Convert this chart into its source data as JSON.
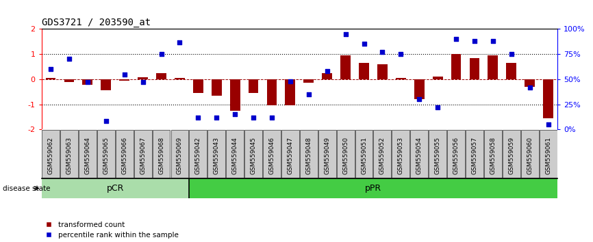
{
  "title": "GDS3721 / 203590_at",
  "samples": [
    "GSM559062",
    "GSM559063",
    "GSM559064",
    "GSM559065",
    "GSM559066",
    "GSM559067",
    "GSM559068",
    "GSM559069",
    "GSM559042",
    "GSM559043",
    "GSM559044",
    "GSM559045",
    "GSM559046",
    "GSM559047",
    "GSM559048",
    "GSM559049",
    "GSM559050",
    "GSM559051",
    "GSM559052",
    "GSM559053",
    "GSM559054",
    "GSM559055",
    "GSM559056",
    "GSM559057",
    "GSM559058",
    "GSM559059",
    "GSM559060",
    "GSM559061"
  ],
  "red_bars": [
    0.05,
    -0.1,
    -0.22,
    -0.45,
    -0.07,
    0.07,
    0.25,
    0.05,
    -0.55,
    -0.65,
    -1.25,
    -0.55,
    -1.05,
    -1.05,
    -0.15,
    0.25,
    0.95,
    0.65,
    0.6,
    0.05,
    -0.8,
    0.1,
    1.0,
    0.85,
    0.95,
    0.65,
    -0.3,
    -1.55
  ],
  "blue_dots": [
    60,
    70,
    47,
    8,
    55,
    47,
    75,
    87,
    12,
    12,
    15,
    12,
    12,
    48,
    35,
    58,
    95,
    85,
    77,
    75,
    30,
    22,
    90,
    88,
    88,
    75,
    42,
    5
  ],
  "pCR_count": 8,
  "bar_color": "#990000",
  "dot_color": "#0000cc",
  "ylim": [
    -2.0,
    2.0
  ],
  "y_left_ticks": [
    -2,
    -1,
    0,
    1,
    2
  ],
  "y_right_ticks": [
    0,
    25,
    50,
    75,
    100
  ],
  "y_right_labels": [
    "0%",
    "25%",
    "50%",
    "75%",
    "100%"
  ],
  "dotted_lines": [
    -1.0,
    1.0
  ],
  "legend_red": "transformed count",
  "legend_blue": "percentile rank within the sample",
  "disease_state_label": "disease state",
  "pCR_color": "#aaddaa",
  "pPR_color": "#44cc44",
  "title_fontsize": 10,
  "tick_fontsize": 7,
  "label_fontsize": 8
}
